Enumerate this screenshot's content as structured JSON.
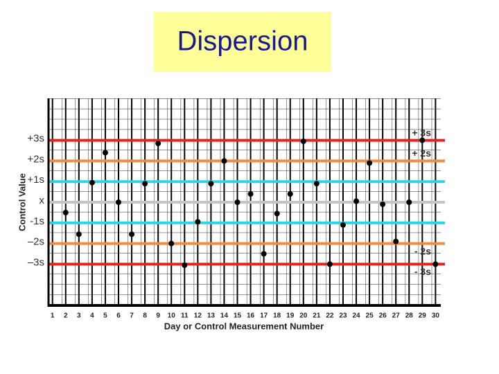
{
  "chart_data": {
    "type": "scatter",
    "title": "Dispersion",
    "x_label": "Day or Control Measurement Number",
    "y_label": "Control Value",
    "x": [
      2,
      3,
      4,
      5,
      6,
      7,
      8,
      9,
      10,
      11,
      12,
      13,
      14,
      15,
      16,
      17,
      18,
      19,
      20,
      21,
      22,
      23,
      24,
      25,
      26,
      27,
      28,
      29,
      30
    ],
    "values": [
      -0.5,
      -1.55,
      0.95,
      2.4,
      0,
      -1.55,
      0.9,
      2.85,
      -2,
      -3.05,
      -0.95,
      0.9,
      2,
      0,
      0.4,
      -2.5,
      -0.55,
      0.4,
      2.95,
      0.9,
      -3,
      -1.1,
      0.05,
      1.9,
      -0.1,
      -1.9,
      0,
      3,
      -3
    ],
    "color": "#000000",
    "xlim": [
      0.7,
      30.4
    ],
    "ylim": [
      -5,
      5
    ],
    "xticks": [
      1,
      2,
      3,
      4,
      5,
      6,
      7,
      8,
      9,
      10,
      11,
      12,
      13,
      14,
      15,
      16,
      17,
      18,
      19,
      20,
      21,
      22,
      23,
      24,
      25,
      26,
      27,
      28,
      29,
      30
    ],
    "yticks": [
      {
        "value": 3,
        "label": "+3s"
      },
      {
        "value": 2,
        "label": "+2s"
      },
      {
        "value": 1,
        "label": "+1s"
      },
      {
        "value": 0,
        "label": "x"
      },
      {
        "value": -1,
        "label": "-1s"
      },
      {
        "value": -2,
        "label": "–2s"
      },
      {
        "value": -3,
        "label": "–3s"
      }
    ],
    "ytick_line_colors": [
      "#e8231f",
      "#f08a45",
      "#2ad4e8",
      "#c4c4c4",
      "#2ad4e8",
      "#f08a45",
      "#e8231f"
    ],
    "annotations": [
      {
        "text": "+ 3s",
        "y": 3
      },
      {
        "text": "+ 2s",
        "y": 2
      },
      {
        "text": "- 2s",
        "y": -2
      },
      {
        "text": "- 3s",
        "y": -3
      }
    ],
    "grid": true
  }
}
